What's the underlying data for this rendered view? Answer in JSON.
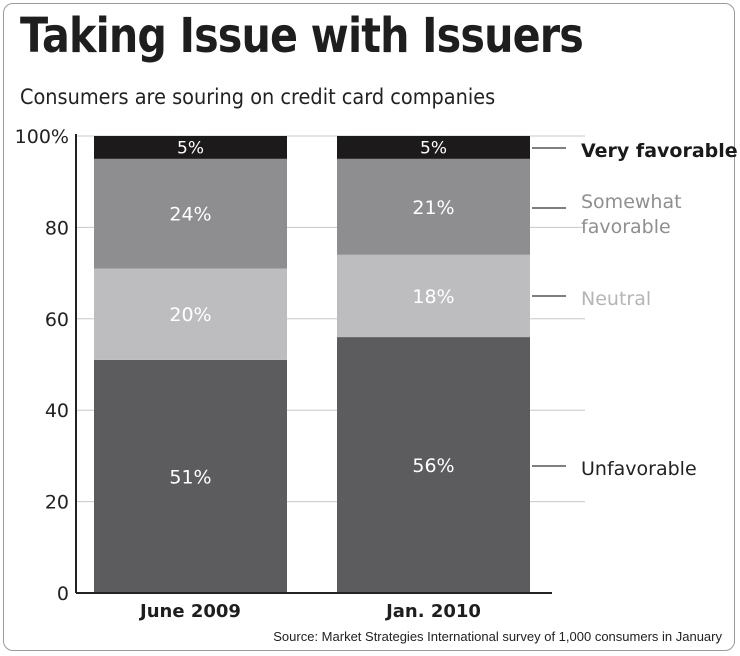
{
  "title": "Taking Issue with Issuers",
  "subtitle": "Consumers are souring on credit card companies",
  "source": "Source: Market Strategies International survey of 1,000 consumers in January",
  "colors": {
    "unfavorable": "#5c5c5e",
    "neutral": "#bdbdbf",
    "somewhat_favorable": "#8e8e90",
    "very_favorable": "#1c1a1b",
    "label_dark": "#222222",
    "label_grey": "#8f8f91",
    "label_light": "#b5b5b7"
  },
  "chart_data": {
    "type": "bar",
    "stacked": true,
    "categories": [
      "June 2009",
      "Jan. 2010"
    ],
    "series": [
      {
        "name": "Unfavorable",
        "values": [
          51,
          56
        ],
        "labels": [
          "51%",
          "56%"
        ]
      },
      {
        "name": "Neutral",
        "values": [
          20,
          18
        ],
        "labels": [
          "20%",
          "18%"
        ]
      },
      {
        "name": "Somewhat favorable",
        "values": [
          24,
          21
        ],
        "labels": [
          "24%",
          "21%"
        ]
      },
      {
        "name": "Very favorable",
        "values": [
          5,
          5
        ],
        "labels": [
          "5%",
          "5%"
        ]
      }
    ],
    "legend": [
      {
        "lines": [
          "Very favorable"
        ],
        "style": "bold"
      },
      {
        "lines": [
          "Somewhat",
          "favorable"
        ],
        "style": "grey"
      },
      {
        "lines": [
          "Neutral"
        ],
        "style": "light"
      },
      {
        "lines": [
          "Unfavorable"
        ],
        "style": "dark"
      }
    ],
    "y_ticks": [
      {
        "value": 0,
        "label": "0"
      },
      {
        "value": 20,
        "label": "20"
      },
      {
        "value": 40,
        "label": "40"
      },
      {
        "value": 60,
        "label": "60"
      },
      {
        "value": 80,
        "label": "80"
      },
      {
        "value": 100,
        "label": "100%"
      }
    ],
    "ylim": [
      0,
      100
    ],
    "grid": true,
    "legend_position": "right"
  }
}
